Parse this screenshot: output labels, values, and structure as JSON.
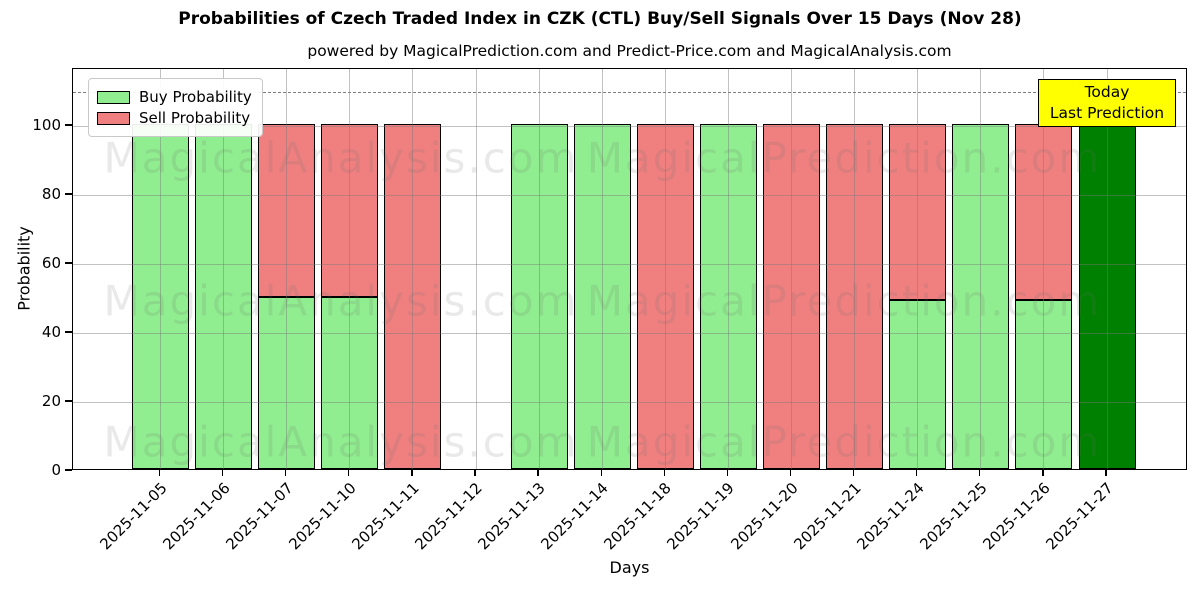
{
  "header": {
    "title": "Probabilities of Czech Traded Index in CZK (CTL) Buy/Sell Signals Over 15 Days (Nov 28)",
    "subtitle": "powered by MagicalPrediction.com and Predict-Price.com and MagicalAnalysis.com"
  },
  "legend": {
    "items": [
      {
        "label": "Buy Probability",
        "color": "#90EE90"
      },
      {
        "label": "Sell Probability",
        "color": "#F08080"
      }
    ]
  },
  "annotation": {
    "line1": "Today",
    "line2": "Last Prediction",
    "bg_color": "#FFFF00"
  },
  "watermarks": {
    "left_text": "MagicalAnalysis.com",
    "right_text": "MagicalPrediction.com"
  },
  "axes": {
    "xlabel": "Days",
    "ylabel": "Probability",
    "yticks": [
      0,
      20,
      40,
      60,
      80,
      100
    ],
    "ylim": [
      0,
      116.5
    ],
    "dashed_line_y": 110,
    "grid": "both"
  },
  "chart_data": {
    "type": "bar",
    "stacked": true,
    "title": "Probabilities of Czech Traded Index in CZK (CTL) Buy/Sell Signals Over 15 Days (Nov 28)",
    "xlabel": "Days",
    "ylabel": "Probability",
    "ylim": [
      0,
      116.5
    ],
    "legend_position": "upper left",
    "categories": [
      "2025-11-05",
      "2025-11-06",
      "2025-11-07",
      "2025-11-10",
      "2025-11-11",
      "2025-11-12",
      "2025-11-13",
      "2025-11-14",
      "2025-11-18",
      "2025-11-19",
      "2025-11-20",
      "2025-11-21",
      "2025-11-24",
      "2025-11-25",
      "2025-11-26",
      "2025-11-27"
    ],
    "series": [
      {
        "name": "Buy Probability",
        "color": "#90EE90",
        "values": [
          100,
          100,
          50,
          50,
          0,
          0,
          100,
          100,
          0,
          100,
          0,
          0,
          49,
          100,
          49,
          0
        ]
      },
      {
        "name": "Sell Probability",
        "color": "#F08080",
        "values": [
          0,
          0,
          50,
          50,
          100,
          0,
          0,
          0,
          100,
          0,
          100,
          100,
          51,
          0,
          51,
          0
        ]
      },
      {
        "name": "Today Last Prediction",
        "color": "#008000",
        "values": [
          0,
          0,
          0,
          0,
          0,
          0,
          0,
          0,
          0,
          0,
          0,
          0,
          0,
          0,
          0,
          100
        ]
      }
    ],
    "note": "2025-11-12 has no bar; dashed reference line at y=110"
  }
}
